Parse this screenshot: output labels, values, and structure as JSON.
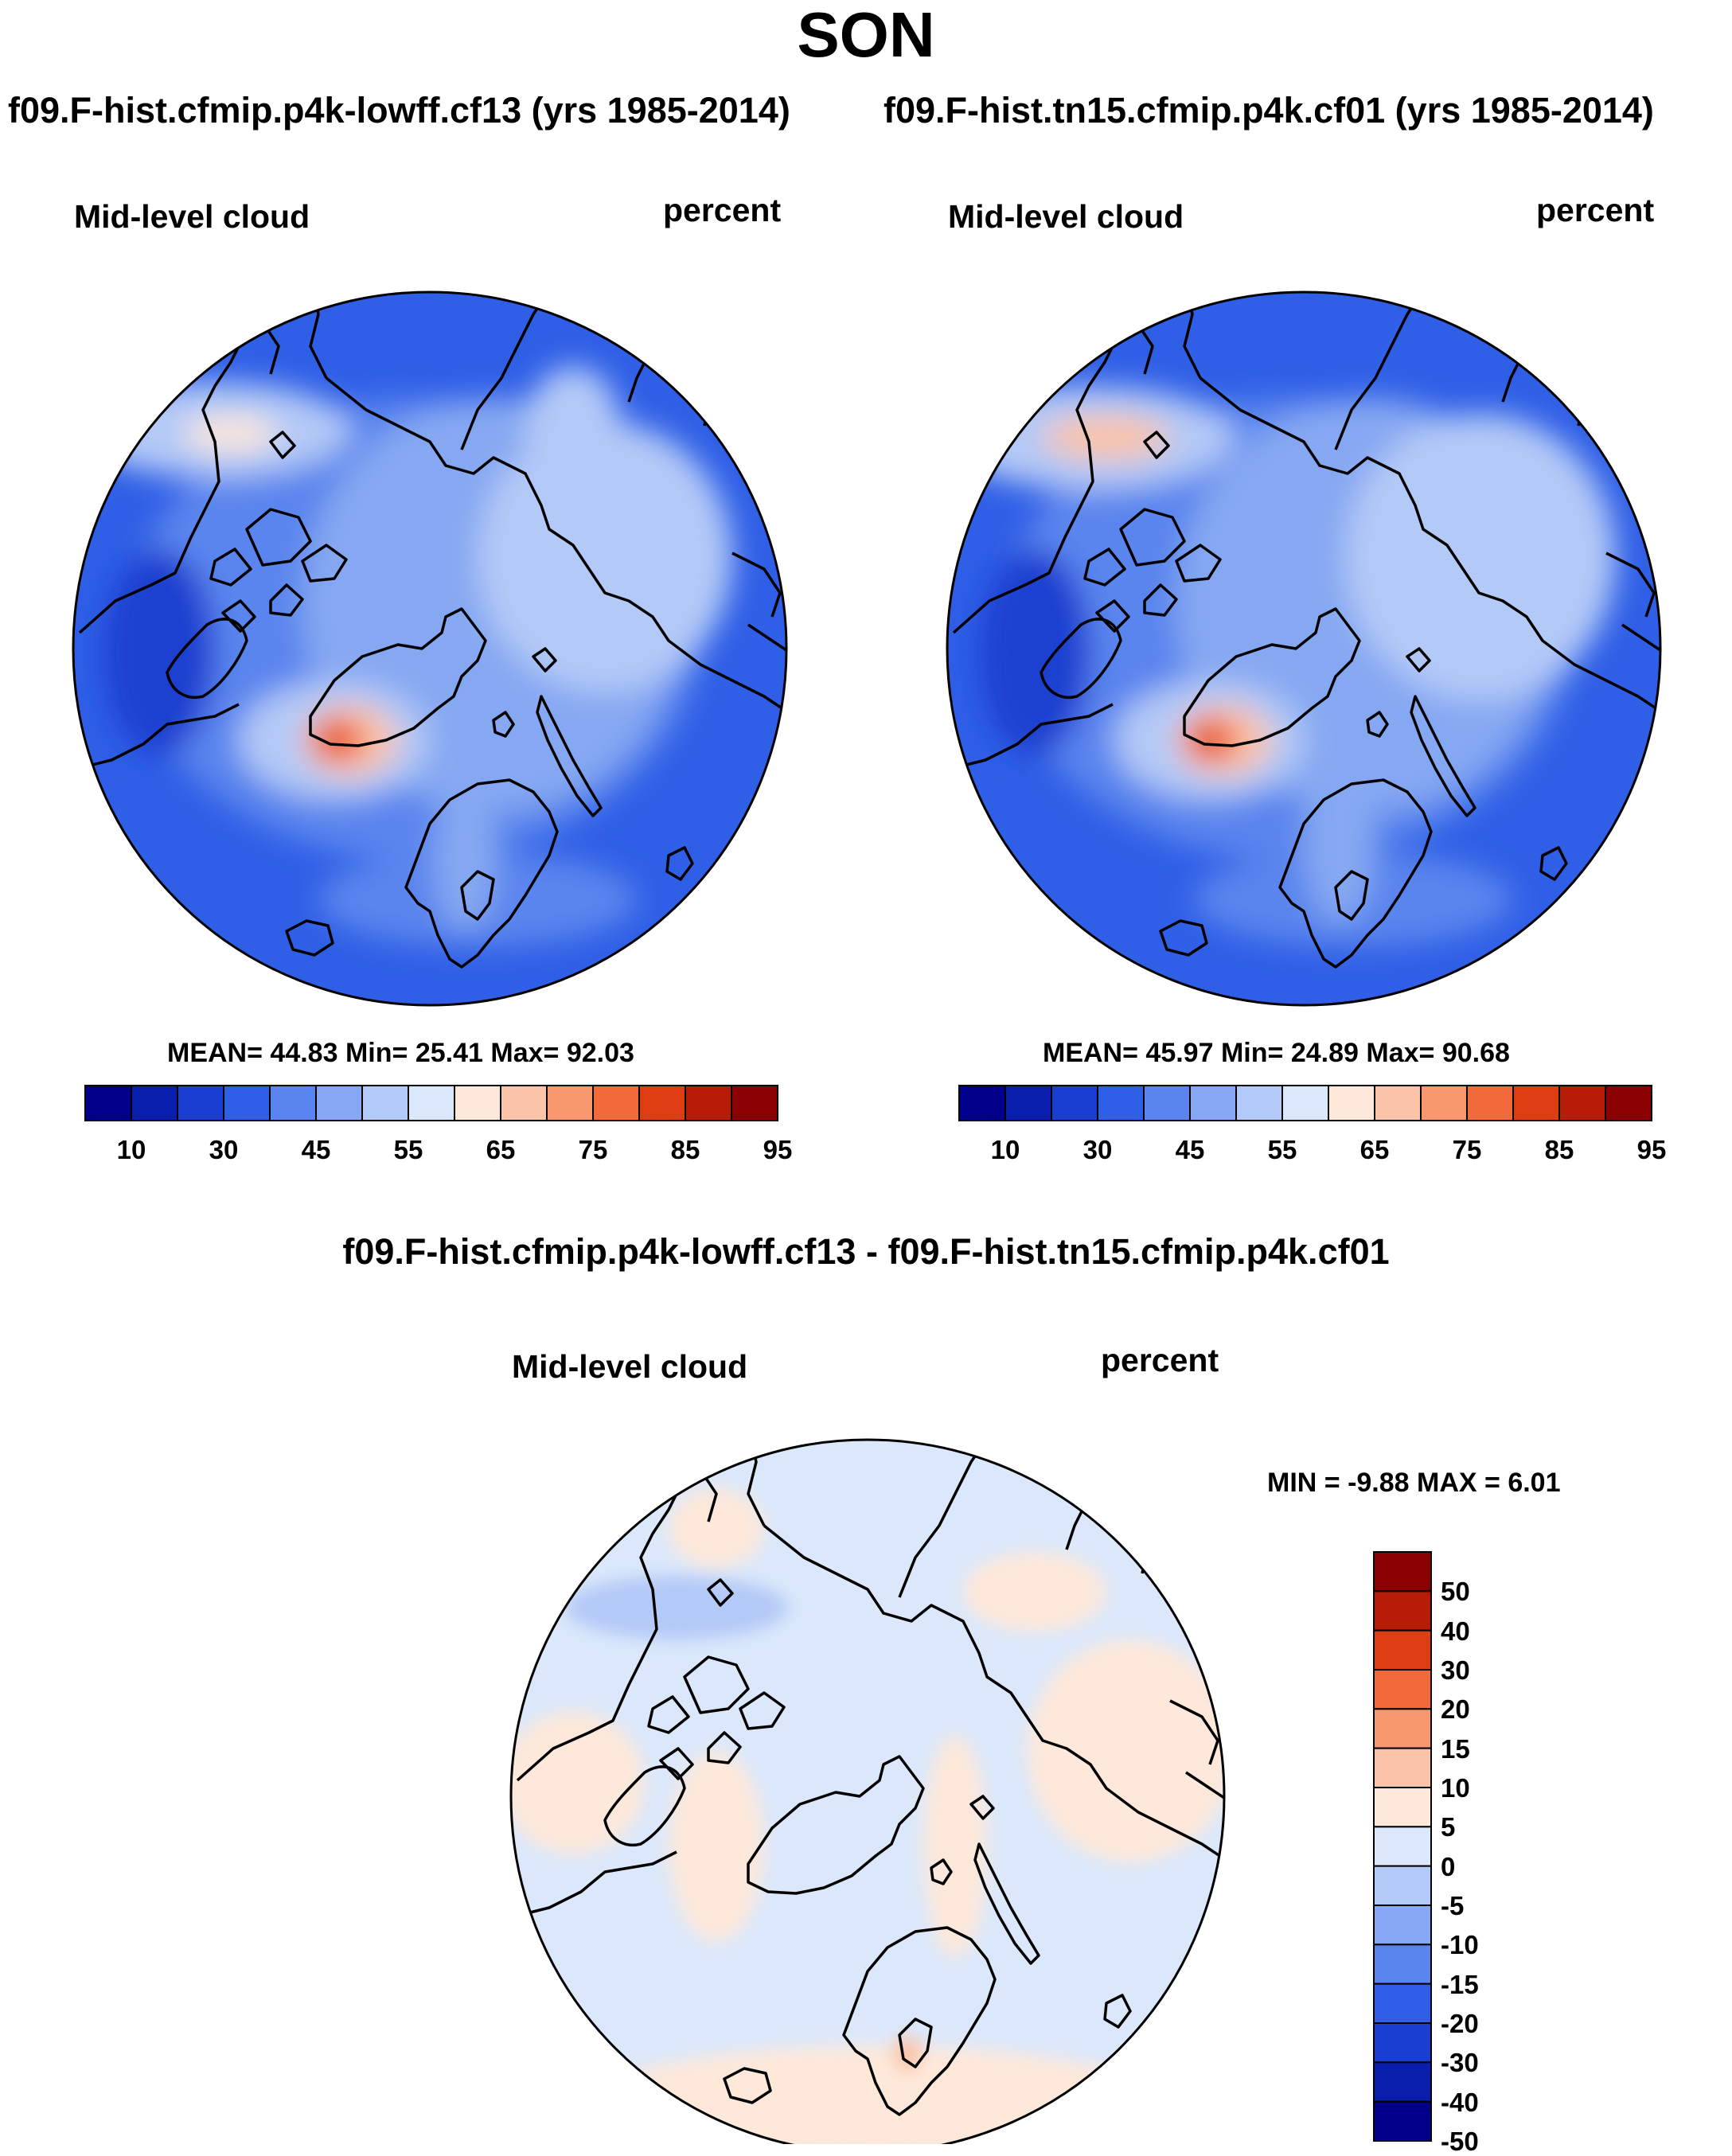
{
  "title": "SON",
  "panels": {
    "left": {
      "run": "f09.F-hist.cfmip.p4k-lowff.cf13 (yrs 1985-2014)",
      "variable": "Mid-level cloud",
      "units": "percent",
      "stats": {
        "mean_label": "MEAN=",
        "mean": "44.83",
        "min_label": "Min=",
        "min": "25.41",
        "max_label": "Max=",
        "max": "92.03"
      }
    },
    "right": {
      "run": "f09.F-hist.tn15.cfmip.p4k.cf01 (yrs 1985-2014)",
      "variable": "Mid-level cloud",
      "units": "percent",
      "stats": {
        "mean_label": "MEAN=",
        "mean": "45.97",
        "min_label": "Min=",
        "min": "24.89",
        "max_label": "Max=",
        "max": "90.68"
      }
    },
    "diff": {
      "title": "f09.F-hist.cfmip.p4k-lowff.cf13 - f09.F-hist.tn15.cfmip.p4k.cf01",
      "variable": "Mid-level cloud",
      "units": "percent",
      "stats_label": "MIN =  -9.88 MAX =   6.01"
    }
  },
  "colorbar_abs": {
    "ticks": [
      "10",
      "30",
      "45",
      "55",
      "65",
      "75",
      "85",
      "95"
    ],
    "colors": [
      "#00008b",
      "#0a1eae",
      "#1a3fd0",
      "#2f5fe6",
      "#5a85ee",
      "#86a8f2",
      "#b3c9f7",
      "#dbe8fb",
      "#fde8da",
      "#fbc4a8",
      "#f8986e",
      "#f26a3c",
      "#de3c12",
      "#b71c08",
      "#8b0000"
    ]
  },
  "colorbar_diff": {
    "ticks": [
      "50",
      "40",
      "30",
      "20",
      "15",
      "10",
      "5",
      "0",
      "-5",
      "-10",
      "-15",
      "-20",
      "-30",
      "-40",
      "-50"
    ],
    "colors": [
      "#8b0000",
      "#b71c08",
      "#de3c12",
      "#f26a3c",
      "#f8986e",
      "#fbc4a8",
      "#fde8da",
      "#dbe8fb",
      "#b3c9f7",
      "#86a8f2",
      "#5a85ee",
      "#2f5fe6",
      "#1a3fd0",
      "#0a1eae",
      "#00008b"
    ]
  }
}
